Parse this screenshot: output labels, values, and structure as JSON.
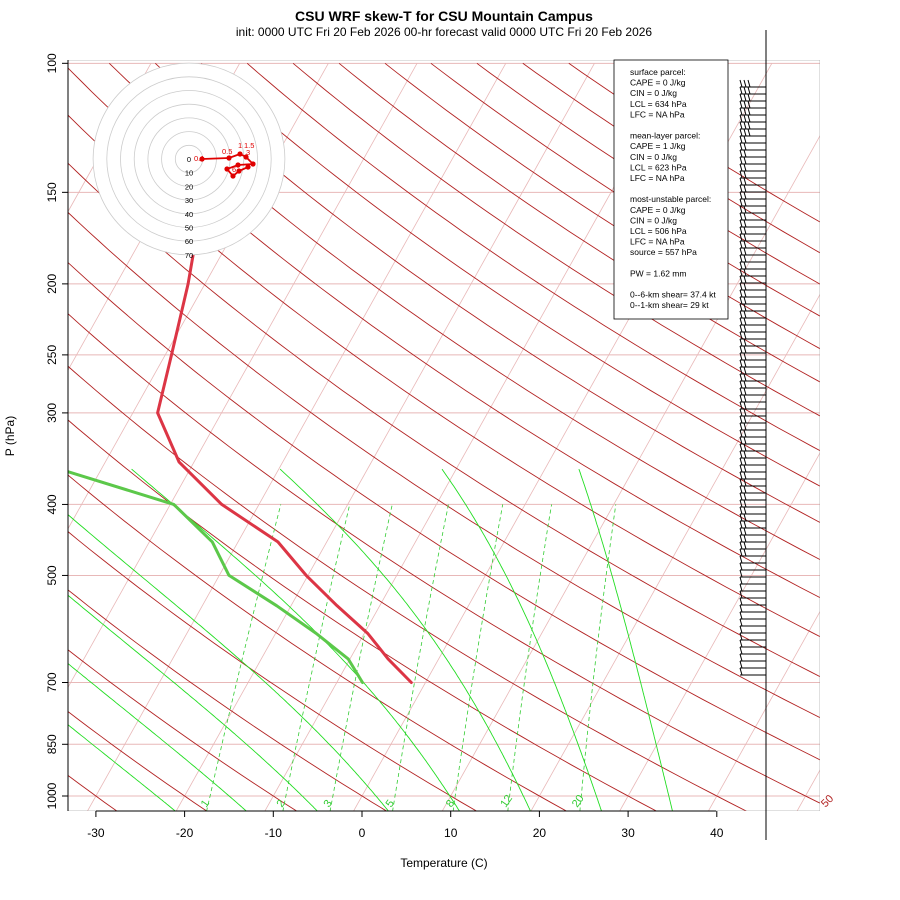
{
  "title": "CSU WRF skew-T for CSU Mountain Campus",
  "subtitle": "init: 0000 UTC Fri 20 Feb 2026     00-hr forecast valid 0000 UTC Fri 20 Feb 2026",
  "colors": {
    "temperature": "#dc3545",
    "dewpoint": "#5cc84a",
    "dry_adiabat": "#b22222",
    "moist_adiabat": "#22dd22",
    "mixing_ratio": "#33cc33",
    "isobar_isotherm": "#e8b8b8",
    "hodograph": "#e00000"
  },
  "chart_data": {
    "type": "line",
    "title": "CSU WRF skew-T for CSU Mountain Campus",
    "xlabel": "Temperature (C)",
    "ylabel": "P (hPa)",
    "x_ticks": [
      -30,
      -20,
      -10,
      0,
      10,
      20,
      30,
      40
    ],
    "y_ticks": [
      100,
      150,
      200,
      250,
      300,
      400,
      500,
      700,
      850,
      1000
    ],
    "xlim": [
      -33,
      40
    ],
    "ylim": [
      1050,
      100
    ],
    "y_scale": "log",
    "skewed_x": true,
    "series": [
      {
        "name": "temperature",
        "points": [
          {
            "p": 700,
            "t": -1.6
          },
          {
            "p": 650,
            "t": -5.7
          },
          {
            "p": 600,
            "t": -9.6
          },
          {
            "p": 550,
            "t": -14.8
          },
          {
            "p": 500,
            "t": -20.2
          },
          {
            "p": 450,
            "t": -25.5
          },
          {
            "p": 400,
            "t": -34.2
          },
          {
            "p": 350,
            "t": -41.7
          },
          {
            "p": 300,
            "t": -47.2
          },
          {
            "p": 250,
            "t": -49.3
          },
          {
            "p": 200,
            "t": -51.9
          },
          {
            "p": 150,
            "t": -55.9
          },
          {
            "p": 110,
            "t": -58.7
          }
        ]
      },
      {
        "name": "dewpoint",
        "points": [
          {
            "p": 700,
            "t": -7.1
          },
          {
            "p": 650,
            "t": -10.2
          },
          {
            "p": 600,
            "t": -15.4
          },
          {
            "p": 550,
            "t": -21.6
          },
          {
            "p": 500,
            "t": -28.9
          },
          {
            "p": 450,
            "t": -32.9
          },
          {
            "p": 400,
            "t": -39.6
          },
          {
            "p": 350,
            "t": -57.8
          },
          {
            "p": 300,
            "t": -71.3
          },
          {
            "p": 250,
            "t": -79.8
          },
          {
            "p": 200,
            "t": -88.7
          },
          {
            "p": 170,
            "t": -90.4
          }
        ]
      }
    ],
    "dry_adiabat_labels": [
      "-10",
      "0",
      "10",
      "20",
      "30",
      "40",
      "50"
    ],
    "mixing_ratio_labels": [
      "1",
      "2",
      "3",
      "5",
      "8",
      "12",
      "20"
    ],
    "hodograph": {
      "rings": [
        "10",
        "20",
        "30",
        "40",
        "50",
        "60",
        "70"
      ],
      "origin_label": "0",
      "height_labels": [
        "0.1",
        "0.5",
        "1",
        "1.5",
        "3",
        "6"
      ]
    },
    "wind_barbs_present": true
  },
  "info_box": {
    "lines": [
      "surface parcel:",
      "CAPE = 0 J/kg",
      "CIN = 0 J/kg",
      "LCL = 634 hPa",
      "LFC = NA hPa",
      "",
      "mean-layer parcel:",
      "CAPE = 1 J/kg",
      "CIN = 0 J/kg",
      "LCL = 623 hPa",
      "LFC = NA hPa",
      "",
      "most-unstable parcel:",
      "CAPE = 0 J/kg",
      "CIN = 0 J/kg",
      "LCL = 506 hPa",
      "LFC = NA hPa",
      "source = 557 hPa",
      "",
      "PW =  1.62 mm",
      "",
      "0--6-km shear= 37.4 kt",
      "0--1-km shear= 29 kt"
    ]
  }
}
